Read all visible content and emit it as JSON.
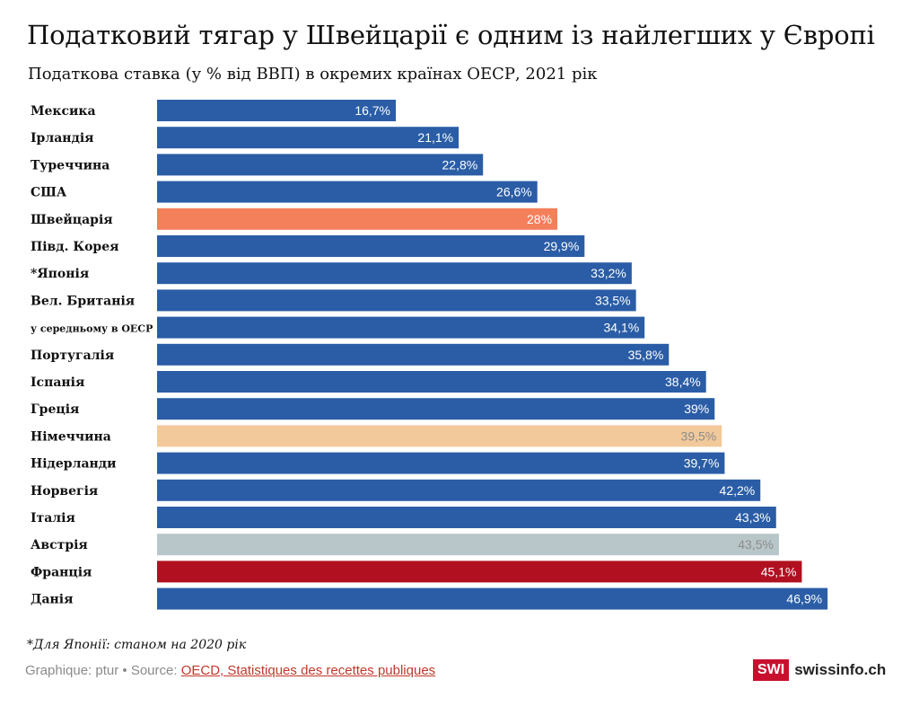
{
  "title": "Податковий тягар у Швейцарії є одним із найлегших у Європі",
  "subtitle": "Податкова ставка (у % від ВВП) в окремих країнах ОЕСР, 2021 рік",
  "footnote": "*Для Японії: станом на 2020 рік",
  "credit": {
    "prefix": "Graphique: ptur • Source: ",
    "link": "OECD, Statistiques des recettes publiques"
  },
  "logo": {
    "box": "SWI",
    "word": "swissinfo.ch"
  },
  "colors": {
    "default": "#2a5da6",
    "switzerland": "#f37f5b",
    "germany": "#f2c99a",
    "austria": "#b8c6c9",
    "france": "#b01020",
    "value_text_light": "#ffffff",
    "value_text_muted": "#8c8c8c"
  },
  "chart_data": {
    "type": "bar",
    "orientation": "horizontal",
    "categories": [
      "Мексика",
      "Ірландія",
      "Туреччина",
      "США",
      "Швейцарія",
      "Півд. Корея",
      "*Японія",
      "Вел. Британія",
      "у середньому в ОЕСР",
      "Португалія",
      "Іспанія",
      "Греція",
      "Німеччина",
      "Нідерланди",
      "Норвегія",
      "Італія",
      "Австрія",
      "Франція",
      "Данія"
    ],
    "values": [
      16.7,
      21.1,
      22.8,
      26.6,
      28,
      29.9,
      33.2,
      33.5,
      34.1,
      35.8,
      38.4,
      39,
      39.5,
      39.7,
      42.2,
      43.3,
      43.5,
      45.1,
      46.9
    ],
    "value_labels": [
      "16,7%",
      "21,1%",
      "22,8%",
      "26,6%",
      "28%",
      "29,9%",
      "33,2%",
      "33,5%",
      "34,1%",
      "35,8%",
      "38,4%",
      "39%",
      "39,5%",
      "39,7%",
      "42,2%",
      "43,3%",
      "43,5%",
      "45,1%",
      "46,9%"
    ],
    "bar_colors": [
      "#2a5da6",
      "#2a5da6",
      "#2a5da6",
      "#2a5da6",
      "#f37f5b",
      "#2a5da6",
      "#2a5da6",
      "#2a5da6",
      "#2a5da6",
      "#2a5da6",
      "#2a5da6",
      "#2a5da6",
      "#f2c99a",
      "#2a5da6",
      "#2a5da6",
      "#2a5da6",
      "#b8c6c9",
      "#b01020",
      "#2a5da6"
    ],
    "label_colors": [
      "#ffffff",
      "#ffffff",
      "#ffffff",
      "#ffffff",
      "#ffffff",
      "#ffffff",
      "#ffffff",
      "#ffffff",
      "#ffffff",
      "#ffffff",
      "#ffffff",
      "#ffffff",
      "#8c8c8c",
      "#ffffff",
      "#ffffff",
      "#ffffff",
      "#8c8c8c",
      "#ffffff",
      "#2a5da6"
    ],
    "xlim": [
      0,
      47
    ],
    "grid": false,
    "legend": "none"
  }
}
